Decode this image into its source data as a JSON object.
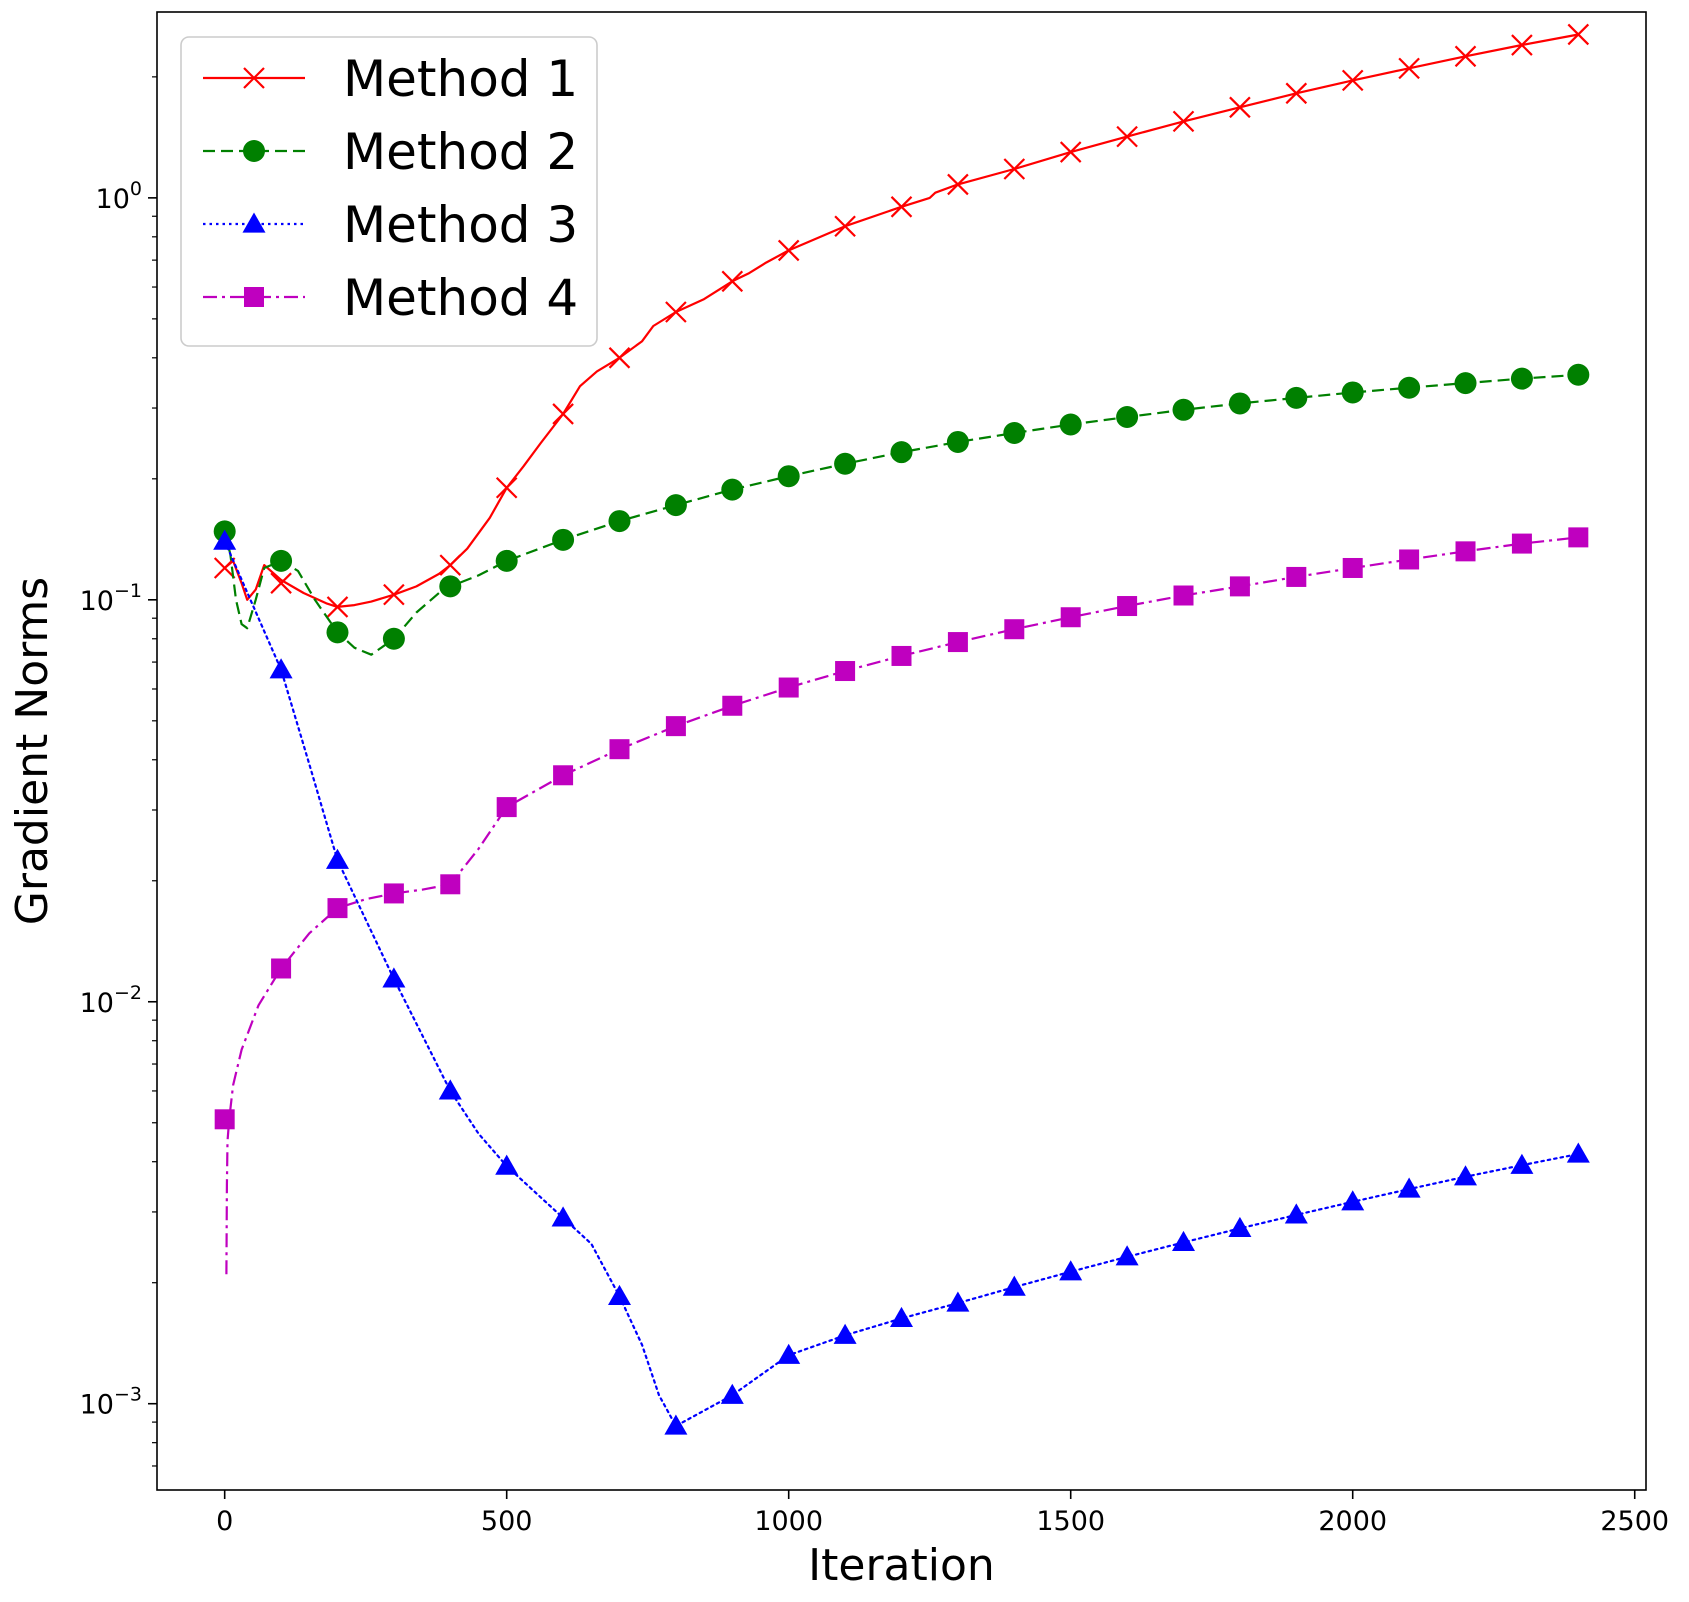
{
  "chart_data": {
    "type": "line",
    "title": "",
    "xlabel": "Iteration",
    "ylabel": "Gradient Norms",
    "xlim": [
      -120,
      2520
    ],
    "ylim": [
      0.00061,
      2.9
    ],
    "yscale": "log",
    "grid": false,
    "legend_position": "upper-left",
    "xticks": [
      0,
      500,
      1000,
      1500,
      2000,
      2500
    ],
    "xtick_labels": [
      "0",
      "500",
      "1000",
      "1500",
      "2000",
      "2500"
    ],
    "yticks": [
      {
        "value": 1,
        "base": "10",
        "exp": "0"
      },
      {
        "value": 0.1,
        "base": "10",
        "exp": "−1"
      },
      {
        "value": 0.01,
        "base": "10",
        "exp": "−2"
      },
      {
        "value": 0.001,
        "base": "10",
        "exp": "−3"
      }
    ],
    "series": [
      {
        "name": "Method 1",
        "color": "#ff0000",
        "linestyle": "solid",
        "marker": "x",
        "x": [
          0,
          100,
          200,
          300,
          400,
          500,
          600,
          700,
          800,
          900,
          1000,
          1100,
          1200,
          1300,
          1400,
          1500,
          1600,
          1700,
          1800,
          1900,
          2000,
          2100,
          2200,
          2300,
          2400
        ],
        "values": [
          0.12,
          0.11,
          0.096,
          0.103,
          0.122,
          0.19,
          0.29,
          0.4,
          0.52,
          0.62,
          0.74,
          0.85,
          0.95,
          1.08,
          1.18,
          1.3,
          1.42,
          1.55,
          1.68,
          1.82,
          1.96,
          2.1,
          2.25,
          2.4,
          2.55
        ],
        "curve_x": [
          0,
          15,
          30,
          40,
          55,
          70,
          100,
          140,
          180,
          200,
          230,
          260,
          300,
          340,
          380,
          400,
          430,
          470,
          500,
          530,
          560,
          600,
          630,
          660,
          700,
          740,
          760,
          800,
          850,
          900,
          930,
          960,
          1000,
          1100,
          1200,
          1250,
          1260,
          1300,
          1400,
          1500,
          1600,
          1700,
          1800,
          1900,
          2000,
          2100,
          2200,
          2300,
          2400
        ],
        "curve_y": [
          0.12,
          0.125,
          0.11,
          0.1,
          0.106,
          0.122,
          0.112,
          0.104,
          0.098,
          0.096,
          0.097,
          0.099,
          0.103,
          0.108,
          0.116,
          0.122,
          0.134,
          0.16,
          0.19,
          0.215,
          0.245,
          0.29,
          0.34,
          0.37,
          0.4,
          0.44,
          0.48,
          0.52,
          0.56,
          0.62,
          0.65,
          0.69,
          0.74,
          0.85,
          0.95,
          1.0,
          1.03,
          1.08,
          1.18,
          1.3,
          1.42,
          1.55,
          1.68,
          1.82,
          1.96,
          2.1,
          2.25,
          2.4,
          2.55
        ]
      },
      {
        "name": "Method 2",
        "color": "#008000",
        "linestyle": "dashed",
        "marker": "circle",
        "x": [
          0,
          100,
          200,
          300,
          400,
          500,
          600,
          700,
          800,
          900,
          1000,
          1100,
          1200,
          1300,
          1400,
          1500,
          1600,
          1700,
          1800,
          1900,
          2000,
          2100,
          2200,
          2300,
          2400
        ],
        "values": [
          0.148,
          0.125,
          0.083,
          0.08,
          0.108,
          0.125,
          0.141,
          0.157,
          0.172,
          0.188,
          0.203,
          0.218,
          0.233,
          0.247,
          0.26,
          0.273,
          0.285,
          0.297,
          0.308,
          0.318,
          0.328,
          0.337,
          0.346,
          0.355,
          0.363
        ],
        "curve_x": [
          0,
          10,
          20,
          30,
          40,
          55,
          70,
          100,
          130,
          160,
          200,
          230,
          260,
          300,
          340,
          380,
          400,
          450,
          500,
          600,
          700,
          800,
          900,
          1000,
          1100,
          1200,
          1300,
          1400,
          1500,
          1600,
          1700,
          1800,
          1900,
          2000,
          2100,
          2200,
          2300,
          2400
        ],
        "curve_y": [
          0.148,
          0.13,
          0.1,
          0.087,
          0.085,
          0.1,
          0.12,
          0.125,
          0.118,
          0.1,
          0.083,
          0.076,
          0.073,
          0.08,
          0.093,
          0.104,
          0.108,
          0.115,
          0.125,
          0.141,
          0.157,
          0.172,
          0.188,
          0.203,
          0.218,
          0.233,
          0.247,
          0.26,
          0.273,
          0.285,
          0.297,
          0.308,
          0.318,
          0.328,
          0.337,
          0.346,
          0.355,
          0.363
        ]
      },
      {
        "name": "Method 3",
        "color": "#0000ff",
        "linestyle": "dotted",
        "marker": "triangle",
        "x": [
          0,
          100,
          200,
          300,
          400,
          500,
          600,
          700,
          800,
          900,
          1000,
          1100,
          1200,
          1300,
          1400,
          1500,
          1600,
          1700,
          1800,
          1900,
          2000,
          2100,
          2200,
          2300,
          2400
        ],
        "values": [
          0.14,
          0.067,
          0.0225,
          0.0114,
          0.006,
          0.0039,
          0.0029,
          0.00185,
          0.00088,
          0.00105,
          0.00132,
          0.00148,
          0.00163,
          0.00178,
          0.00195,
          0.00213,
          0.00232,
          0.00252,
          0.00273,
          0.00295,
          0.00318,
          0.00342,
          0.00367,
          0.00392,
          0.00418
        ],
        "curve_x": [
          0,
          100,
          150,
          200,
          300,
          400,
          450,
          500,
          600,
          650,
          700,
          740,
          770,
          800,
          900,
          1000,
          1100,
          1200,
          1300,
          1400,
          1500,
          1600,
          1700,
          1800,
          1900,
          2000,
          2100,
          2200,
          2300,
          2400
        ],
        "curve_y": [
          0.14,
          0.067,
          0.039,
          0.0225,
          0.0114,
          0.006,
          0.0047,
          0.0039,
          0.0029,
          0.0025,
          0.00185,
          0.0014,
          0.00105,
          0.00088,
          0.00105,
          0.00132,
          0.00148,
          0.00163,
          0.00178,
          0.00195,
          0.00213,
          0.00232,
          0.00252,
          0.00273,
          0.00295,
          0.00318,
          0.00342,
          0.00367,
          0.00392,
          0.00418
        ]
      },
      {
        "name": "Method 4",
        "color": "#bf00bf",
        "linestyle": "dashdot",
        "marker": "square",
        "x": [
          0,
          100,
          200,
          300,
          400,
          500,
          600,
          700,
          800,
          900,
          1000,
          1100,
          1200,
          1300,
          1400,
          1500,
          1600,
          1700,
          1800,
          1900,
          2000,
          2100,
          2200,
          2300,
          2400
        ],
        "values": [
          0.0051,
          0.0121,
          0.0171,
          0.0186,
          0.0196,
          0.0305,
          0.0366,
          0.0425,
          0.0485,
          0.0545,
          0.0605,
          0.0665,
          0.0725,
          0.0785,
          0.0845,
          0.0905,
          0.0965,
          0.1025,
          0.108,
          0.114,
          0.12,
          0.126,
          0.132,
          0.138,
          0.143
        ],
        "curve_x": [
          3,
          4,
          5,
          8,
          15,
          30,
          60,
          100,
          150,
          200,
          250,
          300,
          350,
          400,
          450,
          500,
          600,
          700,
          800,
          900,
          1000,
          1100,
          1200,
          1300,
          1400,
          1500,
          1600,
          1700,
          1800,
          1900,
          2000,
          2100,
          2200,
          2300,
          2400
        ],
        "curve_y": [
          0.0021,
          0.0035,
          0.0045,
          0.0051,
          0.0062,
          0.0076,
          0.0098,
          0.0121,
          0.0148,
          0.0171,
          0.018,
          0.0186,
          0.019,
          0.0196,
          0.024,
          0.0305,
          0.0366,
          0.0425,
          0.0485,
          0.0545,
          0.0605,
          0.0665,
          0.0725,
          0.0785,
          0.0845,
          0.0905,
          0.0965,
          0.1025,
          0.108,
          0.114,
          0.12,
          0.126,
          0.132,
          0.138,
          0.143
        ]
      }
    ]
  }
}
